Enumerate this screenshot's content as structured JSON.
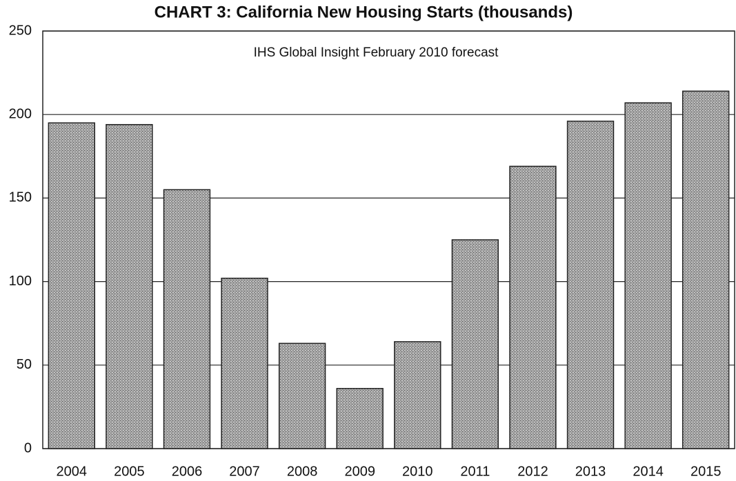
{
  "chart_data": {
    "type": "bar",
    "title": "CHART 3: California New Housing Starts (thousands)",
    "annotation": "IHS Global Insight February 2010 forecast",
    "categories": [
      "2004",
      "2005",
      "2006",
      "2007",
      "2008",
      "2009",
      "2010",
      "2011",
      "2012",
      "2013",
      "2014",
      "2015"
    ],
    "values": [
      195,
      194,
      155,
      102,
      63,
      36,
      64,
      125,
      169,
      196,
      207,
      214
    ],
    "color": "#a8a8a8",
    "ylim": [
      0,
      250
    ],
    "yticks": [
      0,
      50,
      100,
      150,
      200,
      250
    ],
    "grid": true
  }
}
